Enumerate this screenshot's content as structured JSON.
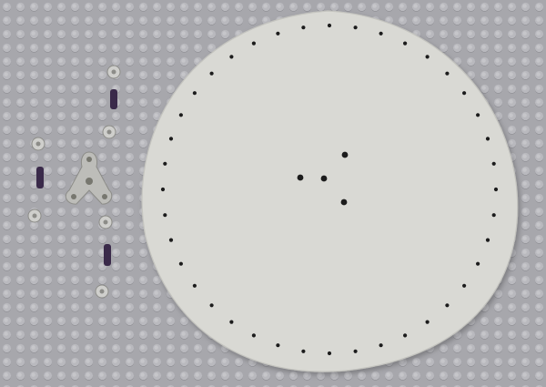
{
  "scene": {
    "baseplate": {
      "color": "#a7a7ac",
      "stud_color": "#b9b9be",
      "stud_shadow": "#8e8e94"
    },
    "cardboard_disc": {
      "color": "#d9d9d4",
      "edge_color": "#c4c4bf",
      "hole_color": "#1c1c1c",
      "perimeter_hole_count": 40,
      "center_hole_count": 4
    },
    "parts": {
      "bushing_color": "#cfcfcc",
      "pin_color": "#3a2a4a",
      "connector_color": "#bdbdb9"
    }
  }
}
